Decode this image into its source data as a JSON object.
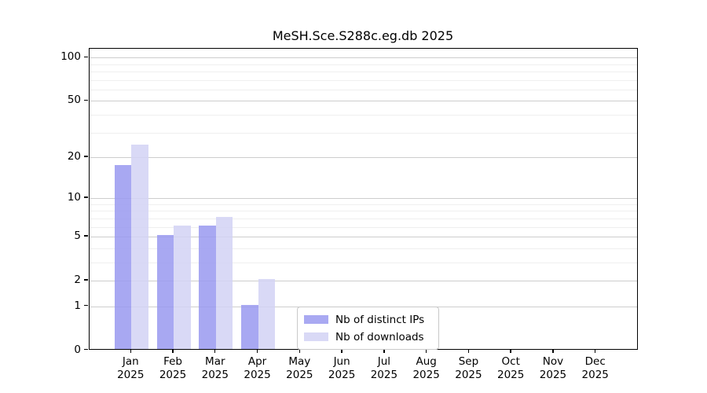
{
  "title": "MeSH.Sce.S288c.eg.db 2025",
  "chart_data": {
    "type": "bar",
    "title": "MeSH.Sce.S288c.eg.db 2025",
    "categories": [
      "Jan",
      "Feb",
      "Mar",
      "Apr",
      "May",
      "Jun",
      "Jul",
      "Aug",
      "Sep",
      "Oct",
      "Nov",
      "Dec"
    ],
    "category_year": "2025",
    "series": [
      {
        "name": "Nb of distinct IPs",
        "bar_color": "rgba(153,153,240,0.85)",
        "legend_color": "#a9a9f2",
        "values": [
          17,
          5,
          6,
          1,
          0,
          0,
          0,
          0,
          0,
          0,
          0,
          0
        ]
      },
      {
        "name": "Nb of downloads",
        "bar_color": "rgba(210,210,244,0.85)",
        "legend_color": "#d9d9f6",
        "values": [
          24,
          6,
          7,
          2,
          0,
          0,
          0,
          0,
          0,
          0,
          0,
          0
        ]
      }
    ],
    "y_axis": {
      "scale": "log1p",
      "major_ticks": [
        0,
        1,
        2,
        5,
        10,
        20,
        50,
        100
      ],
      "minor_ticks": [
        3,
        4,
        6,
        7,
        8,
        9,
        30,
        40,
        60,
        70,
        80,
        90
      ],
      "ylim": [
        0,
        115
      ]
    },
    "grid": {
      "major_color": "#cdcdcd",
      "minor_color": "#efefef"
    },
    "legend_position": "inside lower center"
  }
}
